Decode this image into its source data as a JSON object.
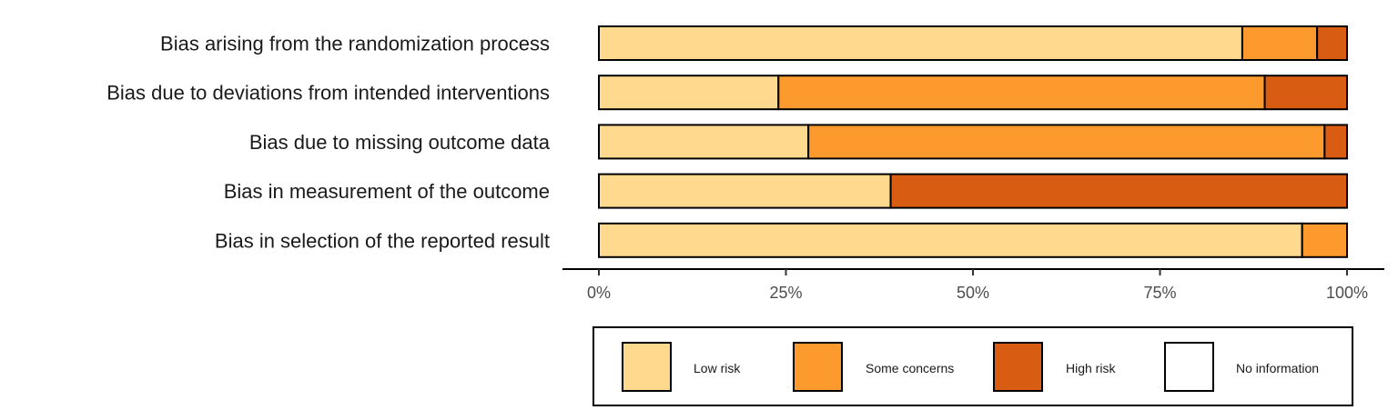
{
  "chart_data": {
    "type": "bar",
    "orientation": "horizontal",
    "stacked": true,
    "percent_scale": true,
    "categories": [
      "Bias arising from the randomization process",
      "Bias due to deviations from intended interventions",
      "Bias due to missing outcome data",
      "Bias in measurement of the outcome",
      "Bias in selection of the reported result"
    ],
    "series": [
      {
        "name": "Low risk",
        "color": "#FFD98E",
        "values": [
          86,
          24,
          28,
          39,
          94
        ]
      },
      {
        "name": "Some concerns",
        "color": "#FD9A2E",
        "values": [
          10,
          65,
          69,
          0,
          6
        ]
      },
      {
        "name": "High risk",
        "color": "#D95C13",
        "values": [
          4,
          11,
          3,
          61,
          0
        ]
      },
      {
        "name": "No information",
        "color": "#FFFFFF",
        "values": [
          0,
          0,
          0,
          0,
          0
        ]
      }
    ],
    "xlim": [
      0,
      100
    ],
    "x_ticks": [
      "0%",
      "25%",
      "50%",
      "75%",
      "100%"
    ],
    "xlabel": "",
    "ylabel": "",
    "grid": false,
    "legend_position": "bottom"
  }
}
